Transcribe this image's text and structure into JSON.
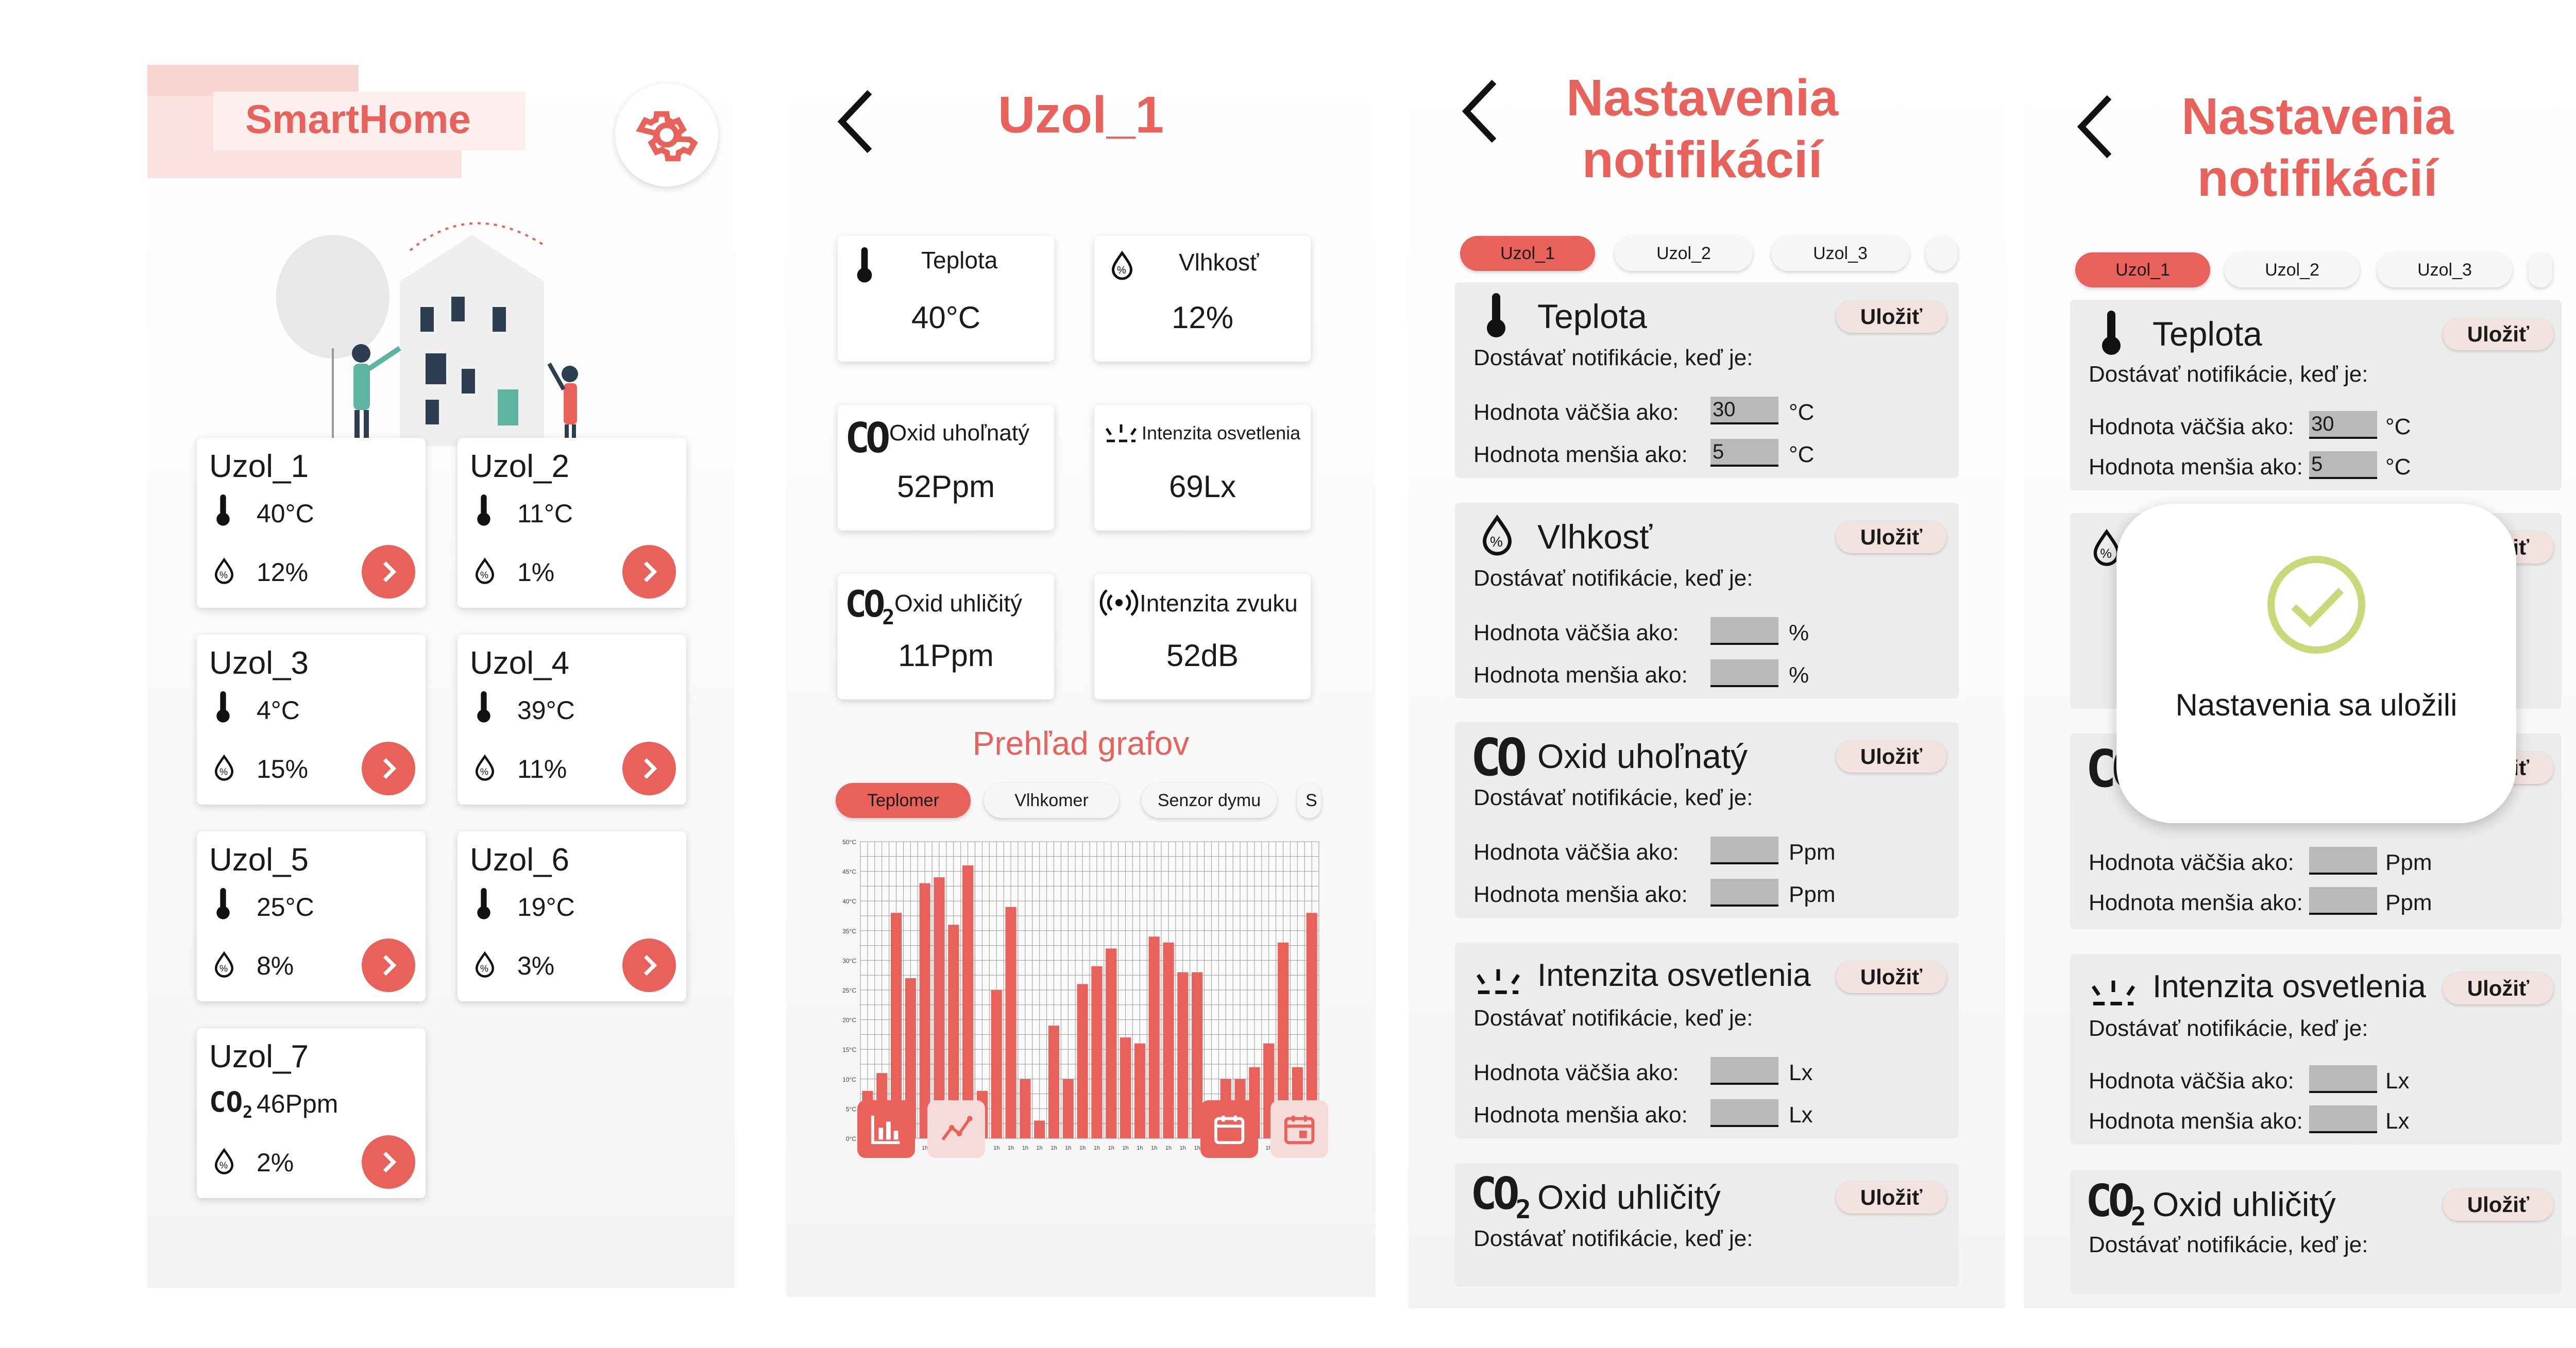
{
  "colors": {
    "accent": "#e8625b",
    "bg": "#f4f4f4",
    "card": "#ffffff",
    "section": "#ececec",
    "success": "#c9d97a"
  },
  "home": {
    "title": "SmartHome",
    "settings_icon": "gear-icon",
    "nodes": [
      {
        "name": "Uzol_1",
        "sensor": "thermometer-icon",
        "value1": "40°C",
        "value2": "12%"
      },
      {
        "name": "Uzol_2",
        "sensor": "thermometer-icon",
        "value1": "11°C",
        "value2": "1%"
      },
      {
        "name": "Uzol_3",
        "sensor": "thermometer-icon",
        "value1": "4°C",
        "value2": "15%"
      },
      {
        "name": "Uzol_4",
        "sensor": "thermometer-icon",
        "value1": "39°C",
        "value2": "11%"
      },
      {
        "name": "Uzol_5",
        "sensor": "thermometer-icon",
        "value1": "25°C",
        "value2": "8%"
      },
      {
        "name": "Uzol_6",
        "sensor": "thermometer-icon",
        "value1": "19°C",
        "value2": "3%"
      },
      {
        "name": "Uzol_7",
        "sensor": "co2-icon",
        "value1": "46Ppm",
        "value2": "2%"
      }
    ]
  },
  "detail": {
    "title": "Uzol_1",
    "sensors": [
      {
        "label": "Teplota",
        "value": "40°C",
        "icon": "thermometer-icon"
      },
      {
        "label": "Vlhkosť",
        "value": "12%",
        "icon": "humidity-icon"
      },
      {
        "label": "Oxid uhoľnatý",
        "value": "52Ppm",
        "icon": "co-icon"
      },
      {
        "label": "Intenzita osvetlenia",
        "value": "69Lx",
        "icon": "light-icon"
      },
      {
        "label": "Oxid uhličitý",
        "value": "11Ppm",
        "icon": "co2-icon"
      },
      {
        "label": "Intenzita zvuku",
        "value": "52dB",
        "icon": "sound-icon"
      }
    ],
    "charts_title": "Prehľad grafov",
    "chart_tabs": [
      "Teplomer",
      "Vlhkomer",
      "Senzor dymu",
      "S"
    ]
  },
  "chart_data": {
    "type": "bar",
    "title": "",
    "xlabel": "",
    "ylabel": "",
    "ylim": [
      0,
      50
    ],
    "ytick_labels": [
      "0°C",
      "5°C",
      "10°C",
      "15°C",
      "20°C",
      "25°C",
      "30°C",
      "35°C",
      "40°C",
      "45°C",
      "50°C"
    ],
    "xtick_label": "1h",
    "values": [
      8,
      11,
      38,
      27,
      43,
      44,
      36,
      46,
      8,
      25,
      39,
      10,
      3,
      19,
      10,
      26,
      29,
      32,
      17,
      16,
      34,
      33,
      28,
      28,
      5,
      10,
      10,
      12,
      16,
      33,
      12,
      38
    ]
  },
  "notif": {
    "title_line1": "Nastavenia",
    "title_line2": "notifikácií",
    "tabs": [
      "Uzol_1",
      "Uzol_2",
      "Uzol_3",
      ""
    ],
    "save_label": "Uložiť",
    "subtitle": "Dostávať notifikácie, keď je:",
    "greater": "Hodnota väčšia ako:",
    "less": "Hodnota menšia ako:",
    "sections": [
      {
        "title": "Teplota",
        "unit": "°C",
        "min": "30",
        "max": "5",
        "icon": "thermometer-icon"
      },
      {
        "title": "Vlhkosť",
        "unit": "%",
        "min": "",
        "max": "",
        "icon": "humidity-icon"
      },
      {
        "title": "Oxid uhoľnatý",
        "unit": "Ppm",
        "min": "",
        "max": "",
        "icon": "co-icon"
      },
      {
        "title": "Intenzita osvetlenia",
        "unit": "Lx",
        "min": "",
        "max": "",
        "icon": "light-icon"
      },
      {
        "title": "Oxid uhličitý",
        "unit": "",
        "min": "",
        "max": "",
        "icon": "co2-icon"
      }
    ],
    "toast": "Nastavenia sa uložili"
  }
}
